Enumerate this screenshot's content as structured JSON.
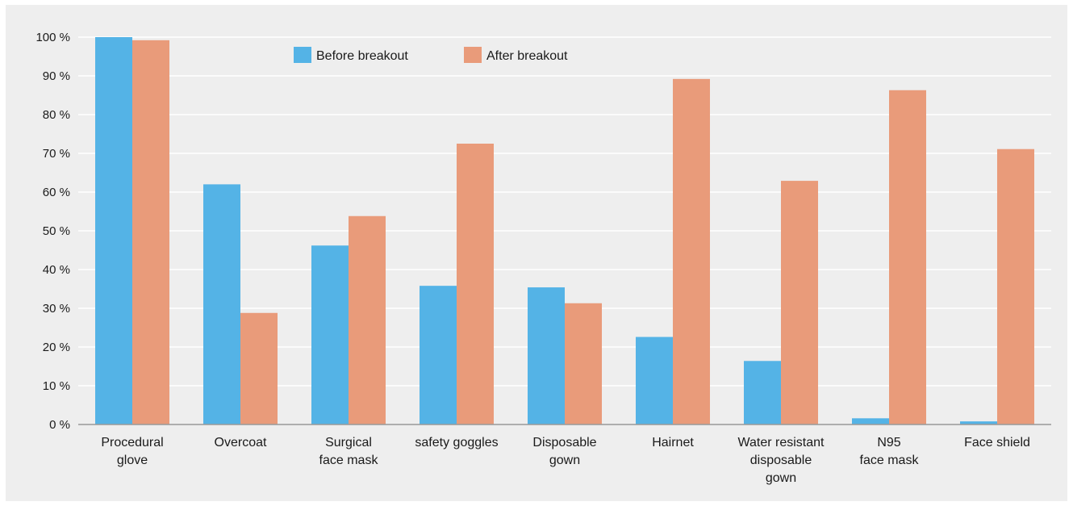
{
  "chart_data": {
    "type": "bar",
    "categories": [
      [
        "Procedural",
        "glove"
      ],
      [
        "Overcoat"
      ],
      [
        "Surgical",
        "face mask"
      ],
      [
        "safety goggles"
      ],
      [
        "Disposable",
        "gown"
      ],
      [
        "Hairnet"
      ],
      [
        "Water resistant",
        "disposable",
        "gown"
      ],
      [
        "N95",
        "face mask"
      ],
      [
        "Face shield"
      ]
    ],
    "series": [
      {
        "name": "Before breakout",
        "color": "#54b3e6",
        "values": [
          100,
          62,
          46.2,
          35.8,
          35.4,
          22.6,
          16.4,
          1.6,
          0.8
        ]
      },
      {
        "name": "After breakout",
        "color": "#e99b7a",
        "values": [
          99.2,
          28.8,
          53.8,
          72.5,
          31.3,
          89.2,
          62.9,
          86.3,
          71.1
        ]
      }
    ],
    "ylim": [
      0,
      100
    ],
    "yticks": [
      0,
      10,
      20,
      30,
      40,
      50,
      60,
      70,
      80,
      90,
      100
    ],
    "ytick_suffix": " %",
    "grid": true,
    "legend_position": "top-center",
    "gridline_color": "#ffffff",
    "axis_color": "#999999"
  }
}
